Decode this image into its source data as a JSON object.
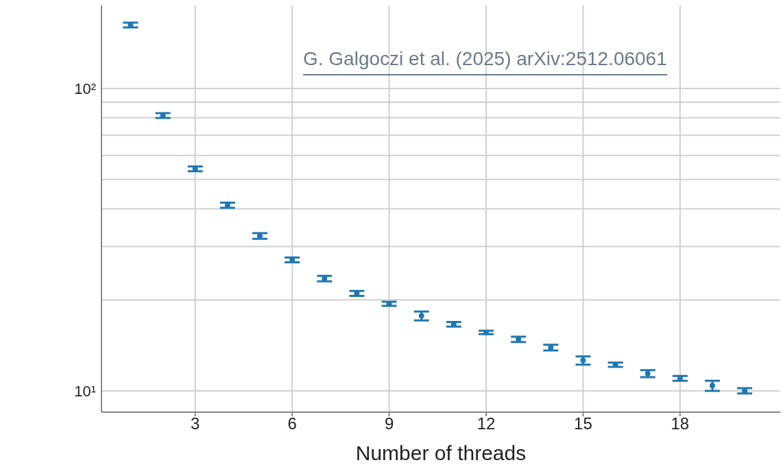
{
  "chart_data": {
    "type": "scatter",
    "xlabel": "Number of threads",
    "annotations": [
      "G. Galgoczi et al. (2025) arXiv:2512.06061"
    ],
    "x": [
      1,
      2,
      3,
      4,
      5,
      6,
      7,
      8,
      9,
      10,
      11,
      12,
      13,
      14,
      15,
      16,
      17,
      18,
      19,
      20
    ],
    "series": [
      {
        "color": "#1f77b4",
        "values": [
          162,
          81.3,
          54.2,
          41.1,
          32.5,
          27.1,
          23.5,
          21.0,
          19.4,
          17.7,
          16.6,
          15.6,
          14.8,
          13.9,
          12.6,
          12.2,
          11.4,
          11.0,
          10.4,
          10.0
        ],
        "errors": [
          3,
          1.5,
          1,
          0.8,
          0.7,
          0.5,
          0.5,
          0.4,
          0.3,
          0.6,
          0.3,
          0.2,
          0.3,
          0.3,
          0.4,
          0.2,
          0.3,
          0.2,
          0.4,
          0.2
        ]
      }
    ],
    "xlim": [
      0.1,
      21.1
    ],
    "xticks": [
      3,
      6,
      9,
      12,
      15,
      18
    ],
    "ylim": [
      8.5,
      188
    ],
    "yticks": [
      {
        "value": 10,
        "label": "10¹"
      },
      {
        "value": 20,
        "label": null
      },
      {
        "value": 30,
        "label": null
      },
      {
        "value": 40,
        "label": null
      },
      {
        "value": 50,
        "label": null
      },
      {
        "value": 60,
        "label": null
      },
      {
        "value": 70,
        "label": null
      },
      {
        "value": 80,
        "label": null
      },
      {
        "value": 90,
        "label": null
      },
      {
        "value": 100,
        "label": "10²"
      }
    ],
    "log": true,
    "grid": true,
    "marker": "circle"
  }
}
